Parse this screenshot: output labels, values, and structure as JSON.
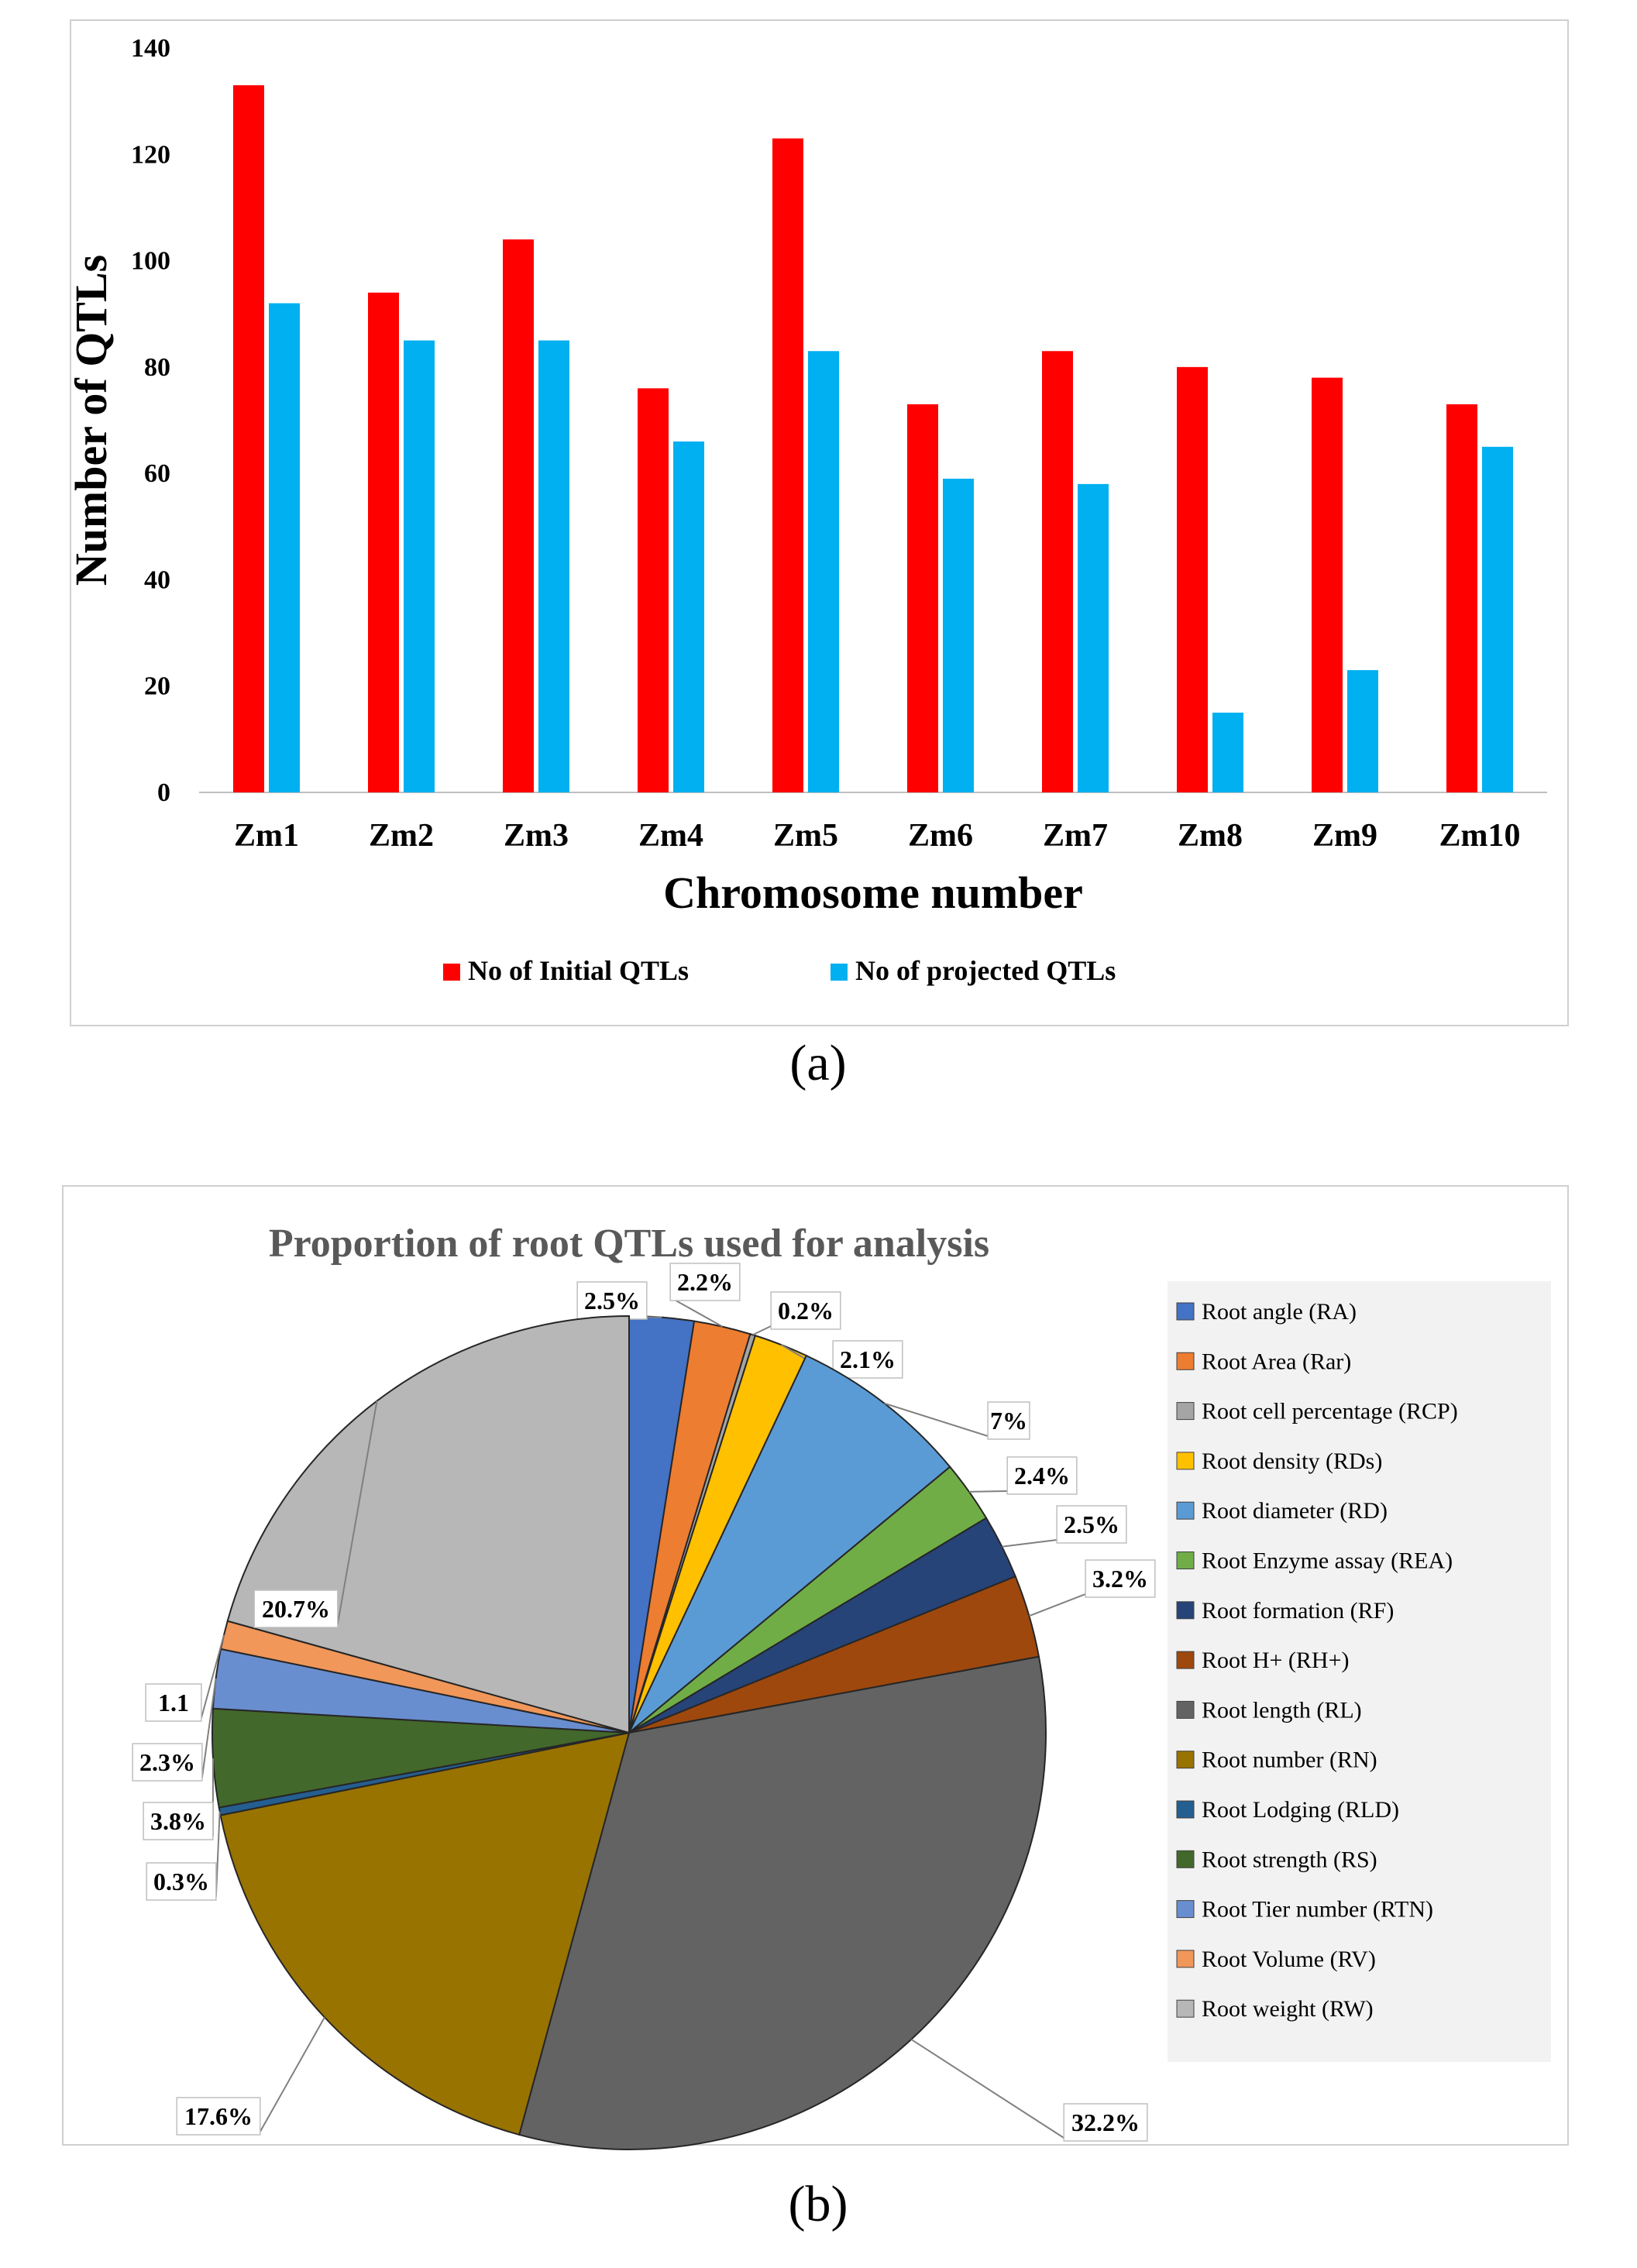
{
  "chart_data": [
    {
      "type": "bar",
      "title": "",
      "xlabel": "Chromosome number",
      "ylabel": "Number of QTLs",
      "ylim": [
        0,
        140
      ],
      "yticks": [
        0,
        20,
        40,
        60,
        80,
        100,
        120,
        140
      ],
      "categories": [
        "Zm1",
        "Zm2",
        "Zm3",
        "Zm4",
        "Zm5",
        "Zm6",
        "Zm7",
        "Zm8",
        "Zm9",
        "Zm10"
      ],
      "series": [
        {
          "name": "No of Initial QTLs",
          "color": "#ff0000",
          "values": [
            133,
            94,
            104,
            76,
            123,
            73,
            83,
            80,
            78,
            73
          ]
        },
        {
          "name": "No of projected QTLs",
          "color": "#00b0f0",
          "values": [
            92,
            85,
            85,
            66,
            83,
            59,
            58,
            15,
            23,
            65
          ]
        }
      ],
      "legend": "bottom",
      "grid": false
    },
    {
      "type": "pie",
      "title": "Proportion of root QTLs used for analysis",
      "legend": "right",
      "slices": [
        {
          "name": "Root angle (RA)",
          "value": 2.5,
          "label": "2.5%",
          "color": "#4472c4"
        },
        {
          "name": "Root Area (Rar)",
          "value": 2.2,
          "label": "2.2%",
          "color": "#ed7d31"
        },
        {
          "name": "Root cell percentage (RCP)",
          "value": 0.2,
          "label": "0.2%",
          "color": "#a5a5a5"
        },
        {
          "name": "Root density (RDs)",
          "value": 2.1,
          "label": "2.1%",
          "color": "#ffc000"
        },
        {
          "name": "Root diameter (RD)",
          "value": 7,
          "label": "7%",
          "color": "#5b9bd5"
        },
        {
          "name": "Root Enzyme assay (REA)",
          "value": 2.4,
          "label": "2.4%",
          "color": "#70ad47"
        },
        {
          "name": "Root formation (RF)",
          "value": 2.5,
          "label": "2.5%",
          "color": "#264478"
        },
        {
          "name": "Root H+ (RH+)",
          "value": 3.2,
          "label": "3.2%",
          "color": "#9e480e"
        },
        {
          "name": "Root length (RL)",
          "value": 32.2,
          "label": "32.2%",
          "color": "#636363"
        },
        {
          "name": "Root number (RN)",
          "value": 17.6,
          "label": "17.6%",
          "color": "#997300"
        },
        {
          "name": "Root Lodging (RLD)",
          "value": 0.3,
          "label": "0.3%",
          "color": "#255e91"
        },
        {
          "name": "Root strength (RS)",
          "value": 3.8,
          "label": "3.8%",
          "color": "#43682b"
        },
        {
          "name": "Root Tier number (RTN)",
          "value": 2.3,
          "label": "2.3%",
          "color": "#698ed0"
        },
        {
          "name": "Root Volume (RV)",
          "value": 1.1,
          "label": "1.1",
          "color": "#f1975a"
        },
        {
          "name": "Root weight (RW)",
          "value": 20.7,
          "label": "20.7%",
          "color": "#b7b7b7"
        }
      ]
    }
  ],
  "captions": {
    "a": "(a)",
    "b": "(b)"
  }
}
